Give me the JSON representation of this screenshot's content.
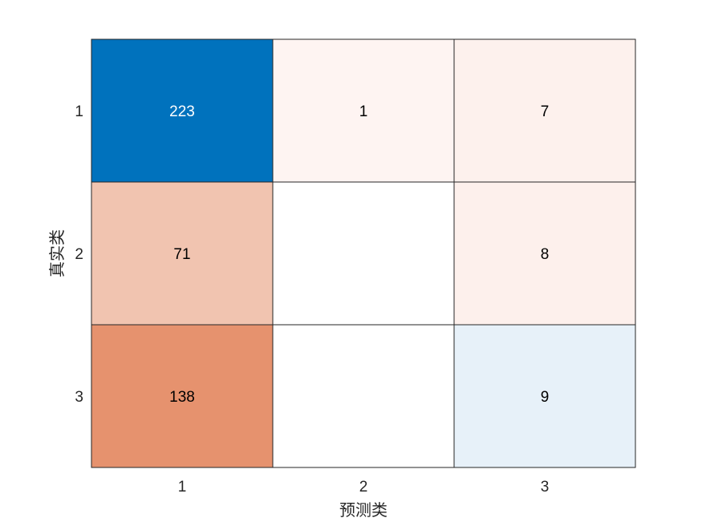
{
  "chart_data": {
    "type": "heatmap",
    "title": "",
    "xlabel": "预测类",
    "ylabel": "真实类",
    "x_categories": [
      "1",
      "2",
      "3"
    ],
    "y_categories": [
      "1",
      "2",
      "3"
    ],
    "values": [
      [
        223,
        1,
        7
      ],
      [
        71,
        null,
        8
      ],
      [
        138,
        null,
        9
      ]
    ],
    "cell_colors": [
      [
        "#0072bd",
        "#fef4f2",
        "#fdf1ed"
      ],
      [
        "#f1c4b0",
        "#ffffff",
        "#fdf0ec"
      ],
      [
        "#e6926e",
        "#ffffff",
        "#e7f1f9"
      ]
    ],
    "cell_text_colors": [
      [
        "#ffffff",
        "#000000",
        "#000000"
      ],
      [
        "#000000",
        "#000000",
        "#000000"
      ],
      [
        "#000000",
        "#000000",
        "#000000"
      ]
    ],
    "grid_color": "#262626"
  }
}
